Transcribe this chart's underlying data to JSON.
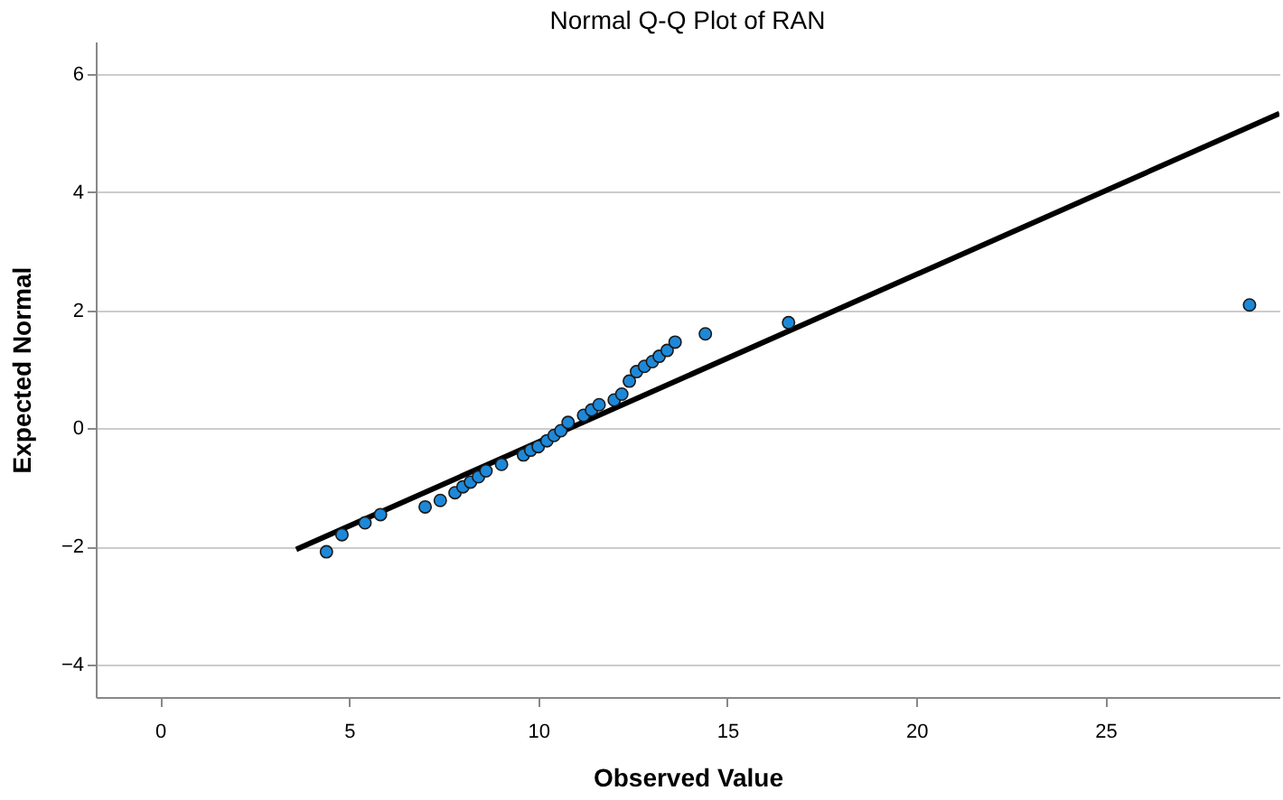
{
  "chart_data": {
    "type": "scatter",
    "title": "Normal Q-Q Plot of RAN",
    "xlabel": "Observed Value",
    "ylabel": "Expected Normal",
    "xlim": [
      -1.7,
      29.6
    ],
    "ylim": [
      -4.55,
      6.55
    ],
    "xticks": [
      0,
      5,
      10,
      15,
      20,
      25
    ],
    "yticks": [
      -4,
      -2,
      0,
      2,
      4,
      6
    ],
    "grid": "y",
    "series": [
      {
        "marker": "circle",
        "color": "#1e88d8",
        "x": [
          4.4,
          4.81,
          5.42,
          5.83,
          7.01,
          7.41,
          7.8,
          8.01,
          8.21,
          8.42,
          8.62,
          9.03,
          9.61,
          9.8,
          10.0,
          10.23,
          10.42,
          10.6,
          10.79,
          11.2,
          11.41,
          11.61,
          12.01,
          12.21,
          12.41,
          12.6,
          12.81,
          13.02,
          13.2,
          13.41,
          13.62,
          14.42,
          16.62,
          28.81
        ],
        "values": [
          -2.09,
          -1.8,
          -1.6,
          -1.46,
          -1.33,
          -1.22,
          -1.09,
          -0.99,
          -0.91,
          -0.82,
          -0.72,
          -0.61,
          -0.45,
          -0.37,
          -0.31,
          -0.21,
          -0.12,
          -0.04,
          0.1,
          0.22,
          0.31,
          0.4,
          0.48,
          0.58,
          0.8,
          0.96,
          1.05,
          1.13,
          1.22,
          1.32,
          1.46,
          1.6,
          1.79,
          2.09
        ]
      },
      {
        "type": "line",
        "color": "#000000",
        "line_style": "solid",
        "x": [
          3.6,
          29.6
        ],
        "values": [
          -2.05,
          5.33
        ]
      }
    ]
  }
}
